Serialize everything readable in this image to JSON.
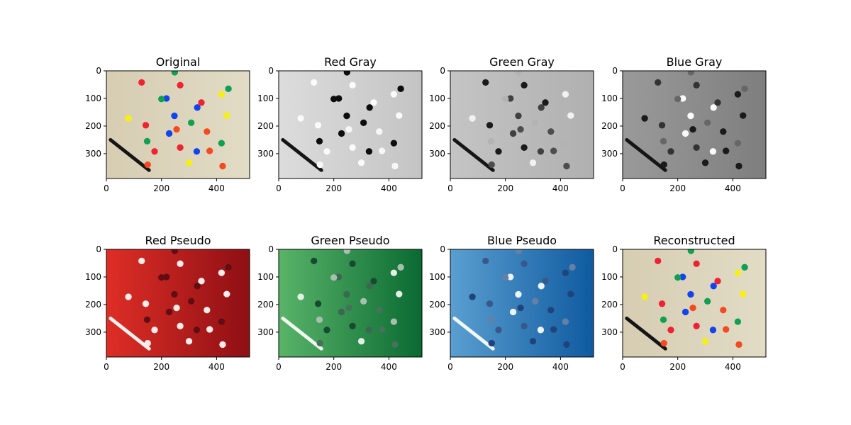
{
  "figure": {
    "layout": "2 rows x 4 columns",
    "background": "#ffffff"
  },
  "chart_data": [
    {
      "type": "image",
      "title": "Original",
      "variant": "color",
      "xlim": [
        0,
        520
      ],
      "ylim": [
        390,
        0
      ],
      "xticks": [
        0,
        200,
        400
      ],
      "yticks": [
        0,
        100,
        200,
        300
      ]
    },
    {
      "type": "image",
      "title": "Red Gray",
      "variant": "gray-red",
      "xlim": [
        0,
        520
      ],
      "ylim": [
        390,
        0
      ],
      "xticks": [
        0,
        200,
        400
      ],
      "yticks": [
        0,
        100,
        200,
        300
      ]
    },
    {
      "type": "image",
      "title": "Green Gray",
      "variant": "gray-green",
      "xlim": [
        0,
        520
      ],
      "ylim": [
        390,
        0
      ],
      "xticks": [
        0,
        200,
        400
      ],
      "yticks": [
        0,
        100,
        200,
        300
      ]
    },
    {
      "type": "image",
      "title": "Blue Gray",
      "variant": "gray-blue",
      "xlim": [
        0,
        520
      ],
      "ylim": [
        390,
        0
      ],
      "xticks": [
        0,
        200,
        400
      ],
      "yticks": [
        0,
        100,
        200,
        300
      ]
    },
    {
      "type": "image",
      "title": "Red Pseudo",
      "variant": "pseudo-red",
      "xlim": [
        0,
        520
      ],
      "ylim": [
        390,
        0
      ],
      "xticks": [
        0,
        200,
        400
      ],
      "yticks": [
        0,
        100,
        200,
        300
      ]
    },
    {
      "type": "image",
      "title": "Green Pseudo",
      "variant": "pseudo-green",
      "xlim": [
        0,
        520
      ],
      "ylim": [
        390,
        0
      ],
      "xticks": [
        0,
        200,
        400
      ],
      "yticks": [
        0,
        100,
        200,
        300
      ]
    },
    {
      "type": "image",
      "title": "Blue Pseudo",
      "variant": "pseudo-blue",
      "xlim": [
        0,
        520
      ],
      "ylim": [
        390,
        0
      ],
      "xticks": [
        0,
        200,
        400
      ],
      "yticks": [
        0,
        100,
        200,
        300
      ]
    },
    {
      "type": "image",
      "title": "Reconstructed",
      "variant": "color",
      "xlim": [
        0,
        520
      ],
      "ylim": [
        390,
        0
      ],
      "xticks": [
        0,
        200,
        400
      ],
      "yticks": [
        0,
        100,
        200,
        300
      ]
    }
  ],
  "scene": {
    "background_color": "#d9cfb6",
    "pen": {
      "from": [
        15,
        250
      ],
      "to": [
        155,
        360
      ],
      "color": "#1a1a1a"
    },
    "discs": [
      {
        "x": 128,
        "y": 42,
        "color": "red"
      },
      {
        "x": 248,
        "y": 5,
        "color": "green"
      },
      {
        "x": 268,
        "y": 52,
        "color": "red"
      },
      {
        "x": 443,
        "y": 65,
        "color": "green"
      },
      {
        "x": 418,
        "y": 85,
        "color": "yellow"
      },
      {
        "x": 218,
        "y": 100,
        "color": "blue"
      },
      {
        "x": 200,
        "y": 102,
        "color": "green"
      },
      {
        "x": 345,
        "y": 115,
        "color": "red"
      },
      {
        "x": 330,
        "y": 133,
        "color": "blue"
      },
      {
        "x": 437,
        "y": 162,
        "color": "yellow"
      },
      {
        "x": 80,
        "y": 172,
        "color": "yellow"
      },
      {
        "x": 247,
        "y": 163,
        "color": "blue"
      },
      {
        "x": 143,
        "y": 197,
        "color": "red"
      },
      {
        "x": 308,
        "y": 188,
        "color": "green"
      },
      {
        "x": 228,
        "y": 227,
        "color": "blue"
      },
      {
        "x": 255,
        "y": 212,
        "color": "orange"
      },
      {
        "x": 365,
        "y": 220,
        "color": "orange"
      },
      {
        "x": 148,
        "y": 255,
        "color": "green"
      },
      {
        "x": 418,
        "y": 262,
        "color": "green"
      },
      {
        "x": 268,
        "y": 278,
        "color": "red"
      },
      {
        "x": 175,
        "y": 292,
        "color": "red"
      },
      {
        "x": 328,
        "y": 292,
        "color": "blue"
      },
      {
        "x": 375,
        "y": 290,
        "color": "orange"
      },
      {
        "x": 300,
        "y": 333,
        "color": "yellow"
      },
      {
        "x": 150,
        "y": 340,
        "color": "orange"
      },
      {
        "x": 422,
        "y": 345,
        "color": "orange"
      }
    ]
  }
}
